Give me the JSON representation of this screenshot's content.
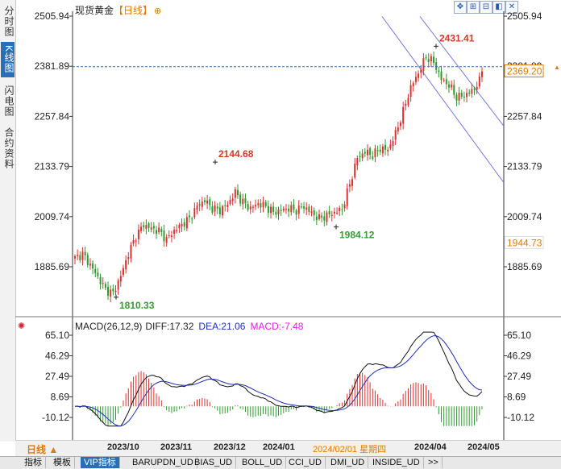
{
  "left_tabs": [
    {
      "label": "分时图",
      "active": false
    },
    {
      "label": "K线图",
      "active": true
    },
    {
      "label": "闪电图",
      "active": false
    },
    {
      "label": "合约资料",
      "active": false
    }
  ],
  "header": {
    "title": "现货黄金",
    "period": "【日线】",
    "settings_icon": "settings-icon"
  },
  "toolbar_icons": [
    "crosshair-icon",
    "zoom-in-icon",
    "zoom-out-icon",
    "restore-icon",
    "close-icon"
  ],
  "price_labels": {
    "high": "2431.41",
    "mid_high": "2144.68",
    "mid_low": "1984.12",
    "low": "1810.33"
  },
  "current_price": "2369.20",
  "crosshair_price": "1944.73",
  "macd": {
    "label": "MACD(26,12,9)",
    "diff": "DIFF:17.32",
    "dea": "DEA:21.06",
    "macd": "MACD:-7.48"
  },
  "bottom": {
    "period_button": "日线 ▲",
    "x_labels": [
      "2023/10",
      "2023/11",
      "2023/12",
      "2024/01",
      "2024/04",
      "2024/05"
    ],
    "cursor_date": "2024/02/01 星期四"
  },
  "bottom_tabs": [
    {
      "label": "指标",
      "active": false
    },
    {
      "label": "模板",
      "active": false
    },
    {
      "label": "VIP指标",
      "active": true
    },
    {
      "label": "BARUPDN_UD",
      "active": false
    },
    {
      "label": "BIAS_UD",
      "active": false
    },
    {
      "label": "BOLL_UD",
      "active": false
    },
    {
      "label": "CCI_UD",
      "active": false
    },
    {
      "label": "DMI_UD",
      "active": false
    },
    {
      "label": "INSIDE_UD",
      "active": false
    },
    {
      "label": ">>",
      "active": false
    }
  ],
  "colors": {
    "up": "#e03030",
    "down": "#2e9a2e",
    "dea": "#1c2fb5",
    "diff": "#111111",
    "macd": "#e020e0",
    "price_line": "#2a6fb5",
    "channel": "#7a7ae0",
    "highlight": "#e07a00"
  },
  "chart_data": [
    {
      "type": "candlestick",
      "title": "现货黄金 日线",
      "y_ticks": [
        "2505.94",
        "2381.89",
        "2257.84",
        "2133.79",
        "2009.74",
        "1885.69"
      ],
      "ylim": [
        1810.33,
        2505.94
      ],
      "y_ticks_right": [
        "2505.94",
        "2381.89",
        "2257.84",
        "2133.79",
        "2009.74",
        "1885.69"
      ],
      "x_labels": [
        "2023/10",
        "2023/11",
        "2023/12",
        "2024/01",
        "2024/04",
        "2024/05"
      ],
      "annotations": [
        {
          "text": "2431.41",
          "value": 2431.41
        },
        {
          "text": "2144.68",
          "value": 2144.68
        },
        {
          "text": "1984.12",
          "value": 1984.12
        },
        {
          "text": "1810.33",
          "value": 1810.33
        }
      ],
      "close_anchors": [
        [
          0,
          1907
        ],
        [
          3,
          1917
        ],
        [
          6,
          1890
        ],
        [
          9,
          1860
        ],
        [
          12,
          1829
        ],
        [
          15,
          1820
        ],
        [
          18,
          1863
        ],
        [
          21,
          1918
        ],
        [
          24,
          1962
        ],
        [
          27,
          1990
        ],
        [
          30,
          1980
        ],
        [
          33,
          1975
        ],
        [
          36,
          1953
        ],
        [
          39,
          1975
        ],
        [
          42,
          1990
        ],
        [
          45,
          2005
        ],
        [
          48,
          2035
        ],
        [
          51,
          2050
        ],
        [
          54,
          2030
        ],
        [
          57,
          2025
        ],
        [
          60,
          2040
        ],
        [
          63,
          2070
        ],
        [
          66,
          2045
        ],
        [
          69,
          2030
        ],
        [
          72,
          2042
        ],
        [
          75,
          2035
        ],
        [
          78,
          2020
        ],
        [
          81,
          2025
        ],
        [
          84,
          2030
        ],
        [
          87,
          2025
        ],
        [
          90,
          2035
        ],
        [
          93,
          2018
        ],
        [
          96,
          2005
        ],
        [
          99,
          2012
        ],
        [
          102,
          2020
        ],
        [
          105,
          2028
        ],
        [
          108,
          2090
        ],
        [
          111,
          2155
        ],
        [
          114,
          2170
        ],
        [
          117,
          2162
        ],
        [
          120,
          2178
        ],
        [
          123,
          2175
        ],
        [
          126,
          2215
        ],
        [
          129,
          2270
        ],
        [
          132,
          2330
        ],
        [
          135,
          2365
        ],
        [
          138,
          2405
        ],
        [
          141,
          2392
        ],
        [
          144,
          2350
        ],
        [
          147,
          2335
        ],
        [
          150,
          2305
        ],
        [
          153,
          2310
        ],
        [
          156,
          2320
        ],
        [
          159,
          2345
        ],
        [
          160,
          2369.2
        ]
      ],
      "current_price": 2369.2,
      "reference_level": 1944.73
    },
    {
      "type": "macd",
      "params": "26,12,9",
      "y_ticks": [
        "65.10",
        "46.29",
        "27.49",
        "8.69",
        "-10.12"
      ],
      "ylim": [
        -20,
        70
      ],
      "last": {
        "diff": 17.32,
        "dea": 21.06,
        "macd": -7.48
      }
    }
  ]
}
